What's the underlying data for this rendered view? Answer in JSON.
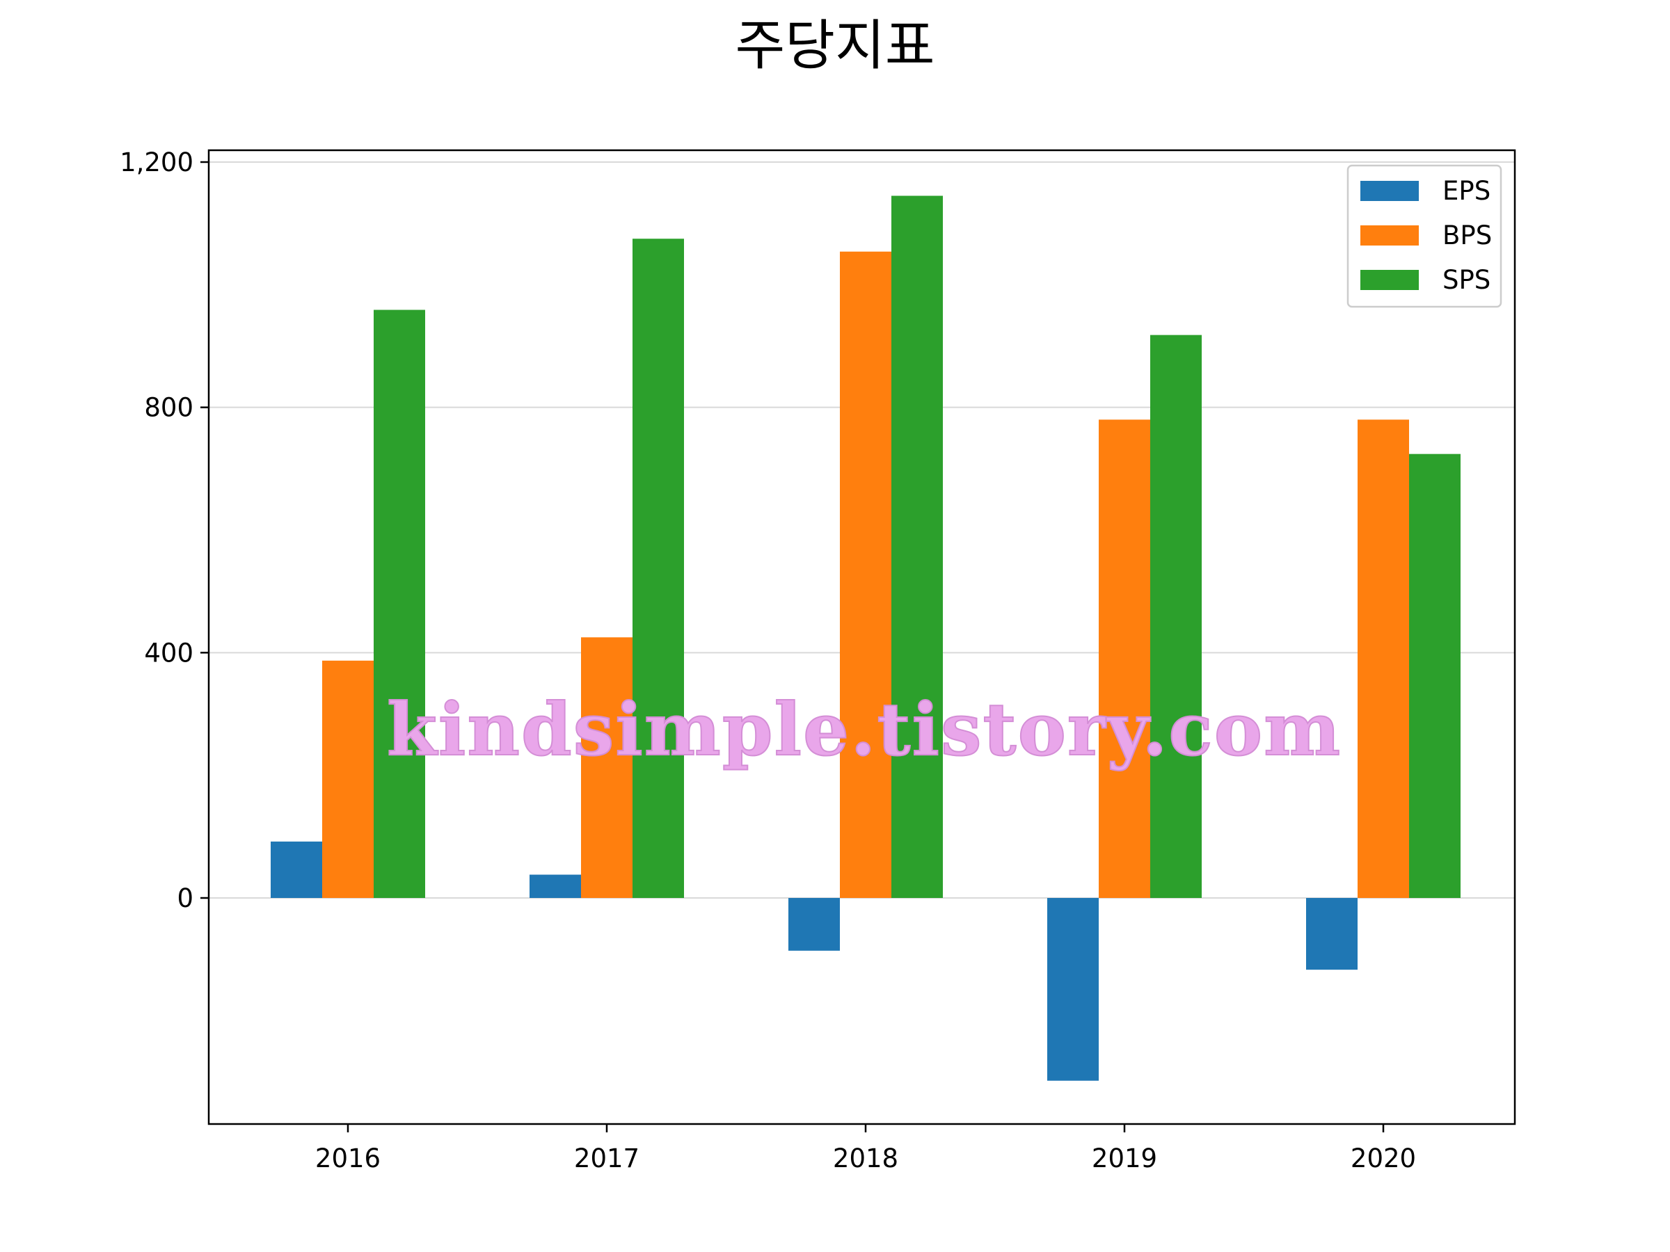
{
  "chart_data": {
    "type": "bar",
    "title": "주당지표",
    "xlabel": "",
    "ylabel": "",
    "categories": [
      "2016",
      "2017",
      "2018",
      "2019",
      "2020"
    ],
    "series": [
      {
        "name": "EPS",
        "color": "#1f77b4",
        "values": [
          92,
          38,
          -86,
          -298,
          -117
        ]
      },
      {
        "name": "BPS",
        "color": "#ff7f0e",
        "values": [
          387,
          425,
          1054,
          780,
          780
        ]
      },
      {
        "name": "SPS",
        "color": "#2ca02c",
        "values": [
          959,
          1075,
          1145,
          918,
          724
        ]
      }
    ],
    "yticks": [
      0,
      400,
      800,
      1200
    ],
    "ytick_labels": [
      "0",
      "400",
      "800",
      "1,200"
    ],
    "ylim": [
      -370,
      1215
    ],
    "grid": true,
    "legend": "top-right"
  },
  "watermark": "kindsimple.tistory.com"
}
